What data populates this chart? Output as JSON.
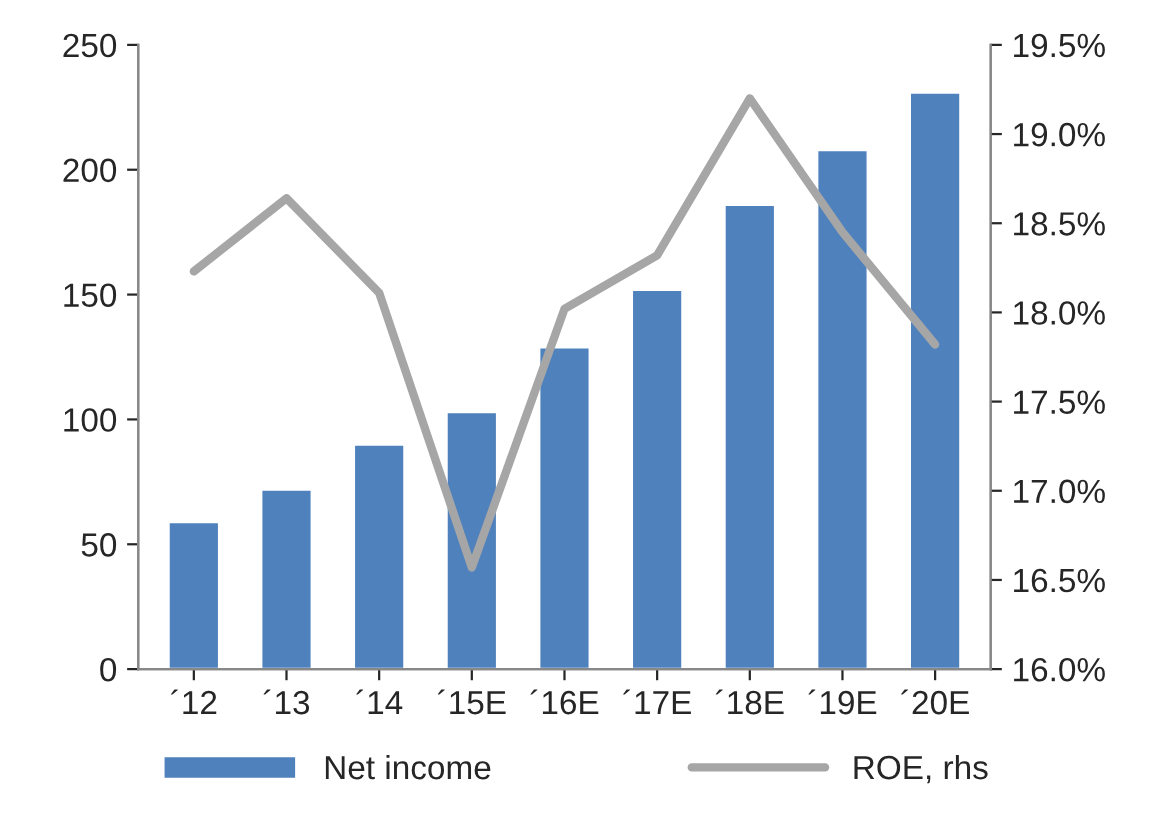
{
  "chart_data": {
    "type": "bar",
    "categories": [
      "´12",
      "´13",
      "´14",
      "´15E",
      "´16E",
      "´17E",
      "´18E",
      "´19E",
      "´20E"
    ],
    "series": [
      {
        "name": "Net income",
        "color": "#4f81bd",
        "values": [
          59,
          72,
          90,
          103,
          129,
          152,
          186,
          208,
          231
        ]
      },
      {
        "name": "ROE, rhs",
        "type": "line",
        "axis": "y2",
        "color": "#a6a6a6",
        "values": [
          18.23,
          18.64,
          18.11,
          16.57,
          18.02,
          18.32,
          19.2,
          18.45,
          17.82
        ]
      }
    ],
    "ylim": [
      0,
      250
    ],
    "yticks": [
      0,
      50,
      100,
      150,
      200,
      250
    ],
    "y2lim": [
      16.0,
      19.5
    ],
    "y2ticks": [
      {
        "value": 16.0,
        "label": "16.0%"
      },
      {
        "value": 16.5,
        "label": "16.5%"
      },
      {
        "value": 17.0,
        "label": "17.0%"
      },
      {
        "value": 17.5,
        "label": "17.5%"
      },
      {
        "value": 18.0,
        "label": "18.0%"
      },
      {
        "value": 18.5,
        "label": "18.5%"
      },
      {
        "value": 19.0,
        "label": "19.0%"
      },
      {
        "value": 19.5,
        "label": "19.5%"
      }
    ],
    "legend": "bottom",
    "grid": false,
    "marker": "none",
    "line_style": "solid"
  }
}
